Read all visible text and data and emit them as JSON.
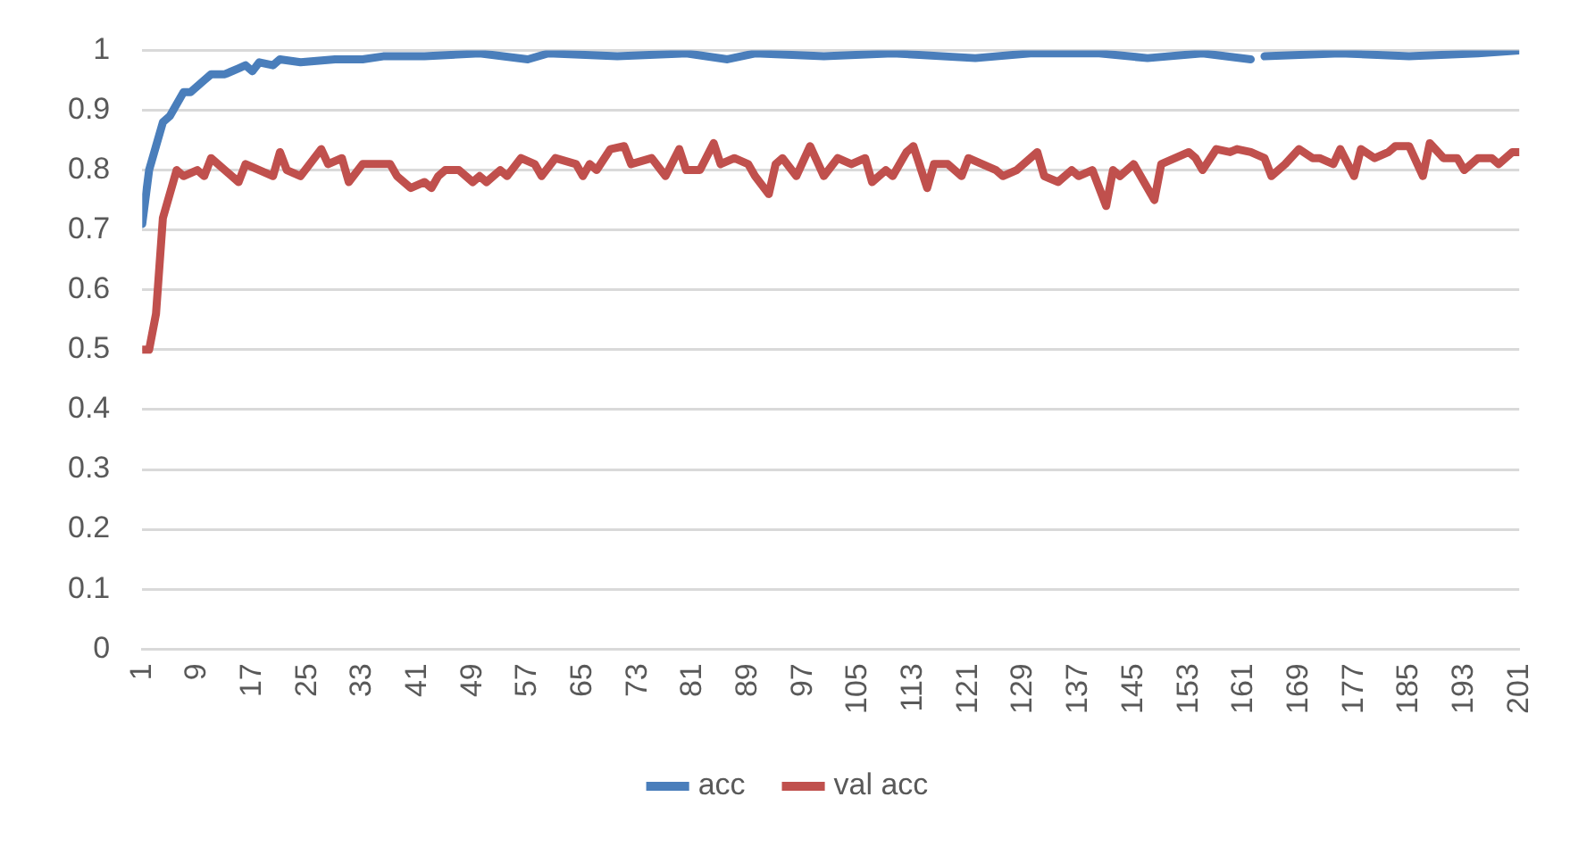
{
  "chart_data": {
    "type": "line",
    "xlim": [
      1,
      201
    ],
    "xticks": [
      1,
      9,
      17,
      25,
      33,
      41,
      49,
      57,
      65,
      73,
      81,
      89,
      97,
      105,
      113,
      121,
      129,
      137,
      145,
      153,
      161,
      169,
      177,
      185,
      193,
      201
    ],
    "ylim": [
      0,
      1
    ],
    "yticks": [
      0,
      0.1,
      0.2,
      0.3,
      0.4,
      0.5,
      0.6,
      0.7,
      0.8,
      0.9,
      1
    ],
    "grid": "y",
    "legend": "bottom",
    "marker": "none",
    "line_style": "solid",
    "series": [
      {
        "name": "acc",
        "color": "#4a7ebb",
        "x": [
          1,
          2,
          3,
          4,
          5,
          7,
          8,
          10,
          11,
          13,
          15,
          16,
          17,
          18,
          20,
          21,
          24,
          29,
          33,
          36,
          42,
          50,
          57,
          60,
          70,
          80,
          86,
          90,
          100,
          110,
          122,
          130,
          140,
          147,
          155,
          162,
          163,
          164,
          175,
          185,
          195,
          201
        ],
        "values": [
          0.71,
          0.8,
          0.84,
          0.88,
          0.89,
          0.93,
          0.93,
          0.95,
          0.96,
          0.96,
          0.97,
          0.975,
          0.965,
          0.98,
          0.975,
          0.985,
          0.98,
          0.985,
          0.985,
          0.99,
          0.99,
          0.995,
          0.985,
          0.995,
          0.99,
          0.995,
          0.985,
          0.995,
          0.99,
          0.995,
          0.987,
          0.995,
          0.995,
          0.987,
          0.995,
          0.985,
          null,
          0.99,
          0.995,
          0.99,
          0.995,
          1
        ]
      },
      {
        "name": "val acc",
        "color": "#c0504d",
        "x": [
          1,
          2,
          3,
          4,
          6,
          7,
          9,
          10,
          11,
          13,
          15,
          16,
          18,
          20,
          21,
          22,
          24,
          27,
          28,
          30,
          31,
          33,
          37,
          38,
          40,
          42,
          43,
          44,
          45,
          47,
          49,
          50,
          51,
          53,
          54,
          56,
          58,
          59,
          61,
          64,
          65,
          66,
          67,
          69,
          71,
          72,
          75,
          77,
          79,
          80,
          82,
          84,
          85,
          87,
          89,
          90,
          92,
          93,
          94,
          96,
          98,
          100,
          102,
          104,
          106,
          107,
          109,
          110,
          112,
          113,
          115,
          116,
          118,
          120,
          121,
          123,
          125,
          126,
          128,
          131,
          132,
          134,
          136,
          137,
          139,
          141,
          142,
          143,
          145,
          146,
          148,
          149,
          151,
          153,
          154,
          155,
          157,
          159,
          160,
          162,
          164,
          165,
          167,
          169,
          171,
          172,
          174,
          175,
          177,
          178,
          180,
          182,
          183,
          185,
          187,
          188,
          190,
          192,
          193,
          195,
          197,
          198,
          200,
          201
        ],
        "values": [
          0.5,
          0.5,
          0.56,
          0.72,
          0.8,
          0.79,
          0.8,
          0.79,
          0.82,
          0.8,
          0.78,
          0.81,
          0.8,
          0.79,
          0.83,
          0.8,
          0.79,
          0.835,
          0.81,
          0.82,
          0.78,
          0.81,
          0.81,
          0.79,
          0.77,
          0.78,
          0.77,
          0.79,
          0.8,
          0.8,
          0.78,
          0.79,
          0.78,
          0.8,
          0.79,
          0.82,
          0.81,
          0.79,
          0.82,
          0.81,
          0.79,
          0.81,
          0.8,
          0.835,
          0.84,
          0.81,
          0.82,
          0.79,
          0.835,
          0.8,
          0.8,
          0.845,
          0.81,
          0.82,
          0.81,
          0.79,
          0.76,
          0.81,
          0.82,
          0.79,
          0.84,
          0.79,
          0.82,
          0.81,
          0.82,
          0.78,
          0.8,
          0.79,
          0.83,
          0.84,
          0.77,
          0.81,
          0.81,
          0.79,
          0.82,
          0.81,
          0.8,
          0.79,
          0.8,
          0.83,
          0.79,
          0.78,
          0.8,
          0.79,
          0.8,
          0.74,
          0.8,
          0.79,
          0.81,
          0.79,
          0.75,
          0.81,
          0.82,
          0.83,
          0.82,
          0.8,
          0.835,
          0.83,
          0.835,
          0.83,
          0.82,
          0.79,
          0.81,
          0.835,
          0.82,
          0.82,
          0.81,
          0.835,
          0.79,
          0.835,
          0.82,
          0.83,
          0.84,
          0.84,
          0.79,
          0.845,
          0.82,
          0.82,
          0.8,
          0.82,
          0.82,
          0.81,
          0.83,
          0.83
        ]
      }
    ]
  }
}
